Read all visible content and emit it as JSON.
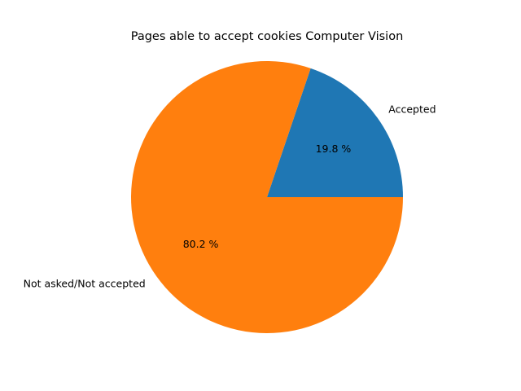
{
  "chart_data": {
    "type": "pie",
    "title": "Pages able to accept cookies Computer Vision",
    "slices": [
      {
        "label": "Accepted",
        "value": 19.8,
        "pct_label": "19.8 %",
        "color": "#1f77b4"
      },
      {
        "label": "Not asked/Not accepted",
        "value": 80.2,
        "pct_label": "80.2 %",
        "color": "#ff7f0e"
      }
    ],
    "start_angle_deg": 0,
    "direction": "counterclockwise"
  }
}
